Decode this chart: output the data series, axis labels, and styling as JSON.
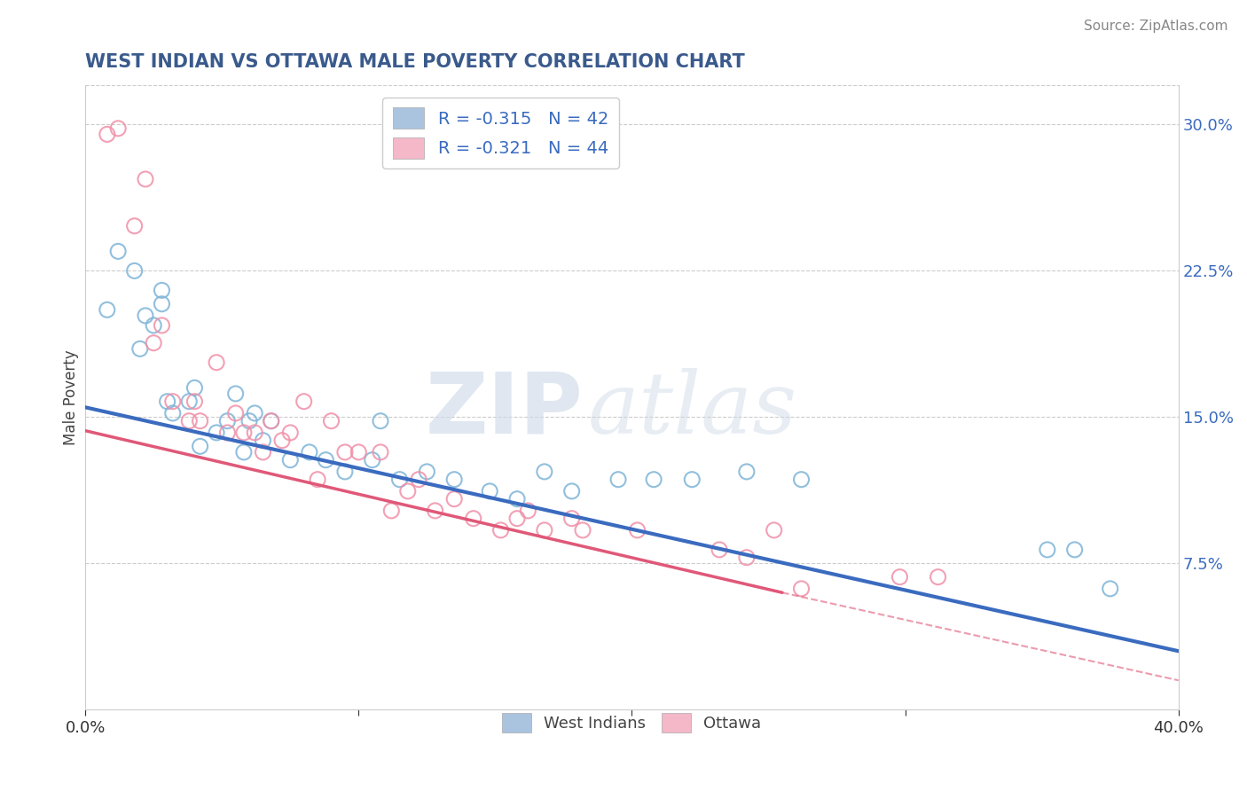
{
  "title": "WEST INDIAN VS OTTAWA MALE POVERTY CORRELATION CHART",
  "source": "Source: ZipAtlas.com",
  "xlabel": "",
  "ylabel": "Male Poverty",
  "watermark_ZIP": "ZIP",
  "watermark_atlas": "atlas",
  "xlim": [
    0.0,
    0.4
  ],
  "ylim": [
    0.0,
    0.32
  ],
  "xticks": [
    0.0,
    0.1,
    0.2,
    0.3,
    0.4
  ],
  "xticklabels": [
    "0.0%",
    "",
    "",
    "",
    "40.0%"
  ],
  "yticks_right": [
    0.0,
    0.075,
    0.15,
    0.225,
    0.3
  ],
  "yticklabels_right": [
    "",
    "7.5%",
    "15.0%",
    "22.5%",
    "30.0%"
  ],
  "title_color": "#3a5a8c",
  "title_fontsize": 15,
  "source_color": "#888888",
  "axis_color": "#cccccc",
  "grid_color": "#cccccc",
  "legend_R1": "R = -0.315",
  "legend_N1": "N = 42",
  "legend_R2": "R = -0.321",
  "legend_N2": "N = 44",
  "legend_color1": "#aac4e0",
  "legend_color2": "#f4b8c8",
  "scatter_color1": "#7eb4d8",
  "scatter_color2": "#f090a8",
  "line_color1": "#3a6bbf",
  "line_color2": "#e05878",
  "west_indians_x": [
    0.008,
    0.012,
    0.018,
    0.02,
    0.022,
    0.025,
    0.028,
    0.028,
    0.03,
    0.032,
    0.038,
    0.04,
    0.042,
    0.048,
    0.052,
    0.055,
    0.058,
    0.06,
    0.062,
    0.065,
    0.068,
    0.075,
    0.082,
    0.088,
    0.095,
    0.105,
    0.108,
    0.115,
    0.125,
    0.135,
    0.148,
    0.158,
    0.168,
    0.178,
    0.195,
    0.208,
    0.222,
    0.242,
    0.262,
    0.352,
    0.362,
    0.375
  ],
  "west_indians_y": [
    0.205,
    0.235,
    0.225,
    0.185,
    0.202,
    0.197,
    0.208,
    0.215,
    0.158,
    0.152,
    0.158,
    0.165,
    0.135,
    0.142,
    0.148,
    0.162,
    0.132,
    0.148,
    0.152,
    0.138,
    0.148,
    0.128,
    0.132,
    0.128,
    0.122,
    0.128,
    0.148,
    0.118,
    0.122,
    0.118,
    0.112,
    0.108,
    0.122,
    0.112,
    0.118,
    0.118,
    0.118,
    0.122,
    0.118,
    0.082,
    0.082,
    0.062
  ],
  "ottawa_x": [
    0.008,
    0.012,
    0.018,
    0.022,
    0.025,
    0.028,
    0.032,
    0.038,
    0.04,
    0.042,
    0.048,
    0.052,
    0.055,
    0.058,
    0.062,
    0.065,
    0.068,
    0.072,
    0.075,
    0.08,
    0.085,
    0.09,
    0.095,
    0.1,
    0.108,
    0.112,
    0.118,
    0.122,
    0.128,
    0.135,
    0.142,
    0.152,
    0.158,
    0.162,
    0.168,
    0.178,
    0.182,
    0.202,
    0.232,
    0.242,
    0.252,
    0.262,
    0.298,
    0.312
  ],
  "ottawa_y": [
    0.295,
    0.298,
    0.248,
    0.272,
    0.188,
    0.197,
    0.158,
    0.148,
    0.158,
    0.148,
    0.178,
    0.142,
    0.152,
    0.142,
    0.142,
    0.132,
    0.148,
    0.138,
    0.142,
    0.158,
    0.118,
    0.148,
    0.132,
    0.132,
    0.132,
    0.102,
    0.112,
    0.118,
    0.102,
    0.108,
    0.098,
    0.092,
    0.098,
    0.102,
    0.092,
    0.098,
    0.092,
    0.092,
    0.082,
    0.078,
    0.092,
    0.062,
    0.068,
    0.068
  ],
  "line1_x0": 0.0,
  "line1_y0": 0.155,
  "line1_x1": 0.4,
  "line1_y1": 0.03,
  "line2_solid_x0": 0.0,
  "line2_solid_y0": 0.143,
  "line2_solid_x1": 0.255,
  "line2_solid_y1": 0.06,
  "line2_dash_x0": 0.255,
  "line2_dash_y0": 0.06,
  "line2_dash_x1": 0.4,
  "line2_dash_y1": 0.015
}
